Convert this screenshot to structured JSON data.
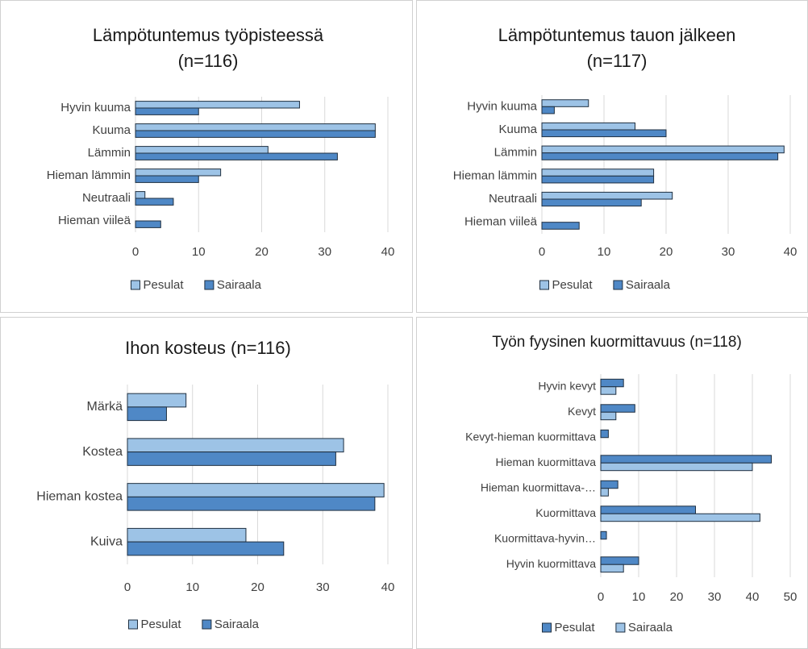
{
  "chart_data": [
    {
      "type": "bar",
      "orientation": "horizontal",
      "title": "Lämpötuntemus työpisteessä (n=116)",
      "categories": [
        "Hyvin kuuma",
        "Kuuma",
        "Lämmin",
        "Hieman lämmin",
        "Neutraali",
        "Hieman viileä"
      ],
      "series": [
        {
          "name": "Pesulat",
          "color": "#9dc3e6",
          "values": [
            26,
            38,
            21,
            13.5,
            1.5,
            0
          ]
        },
        {
          "name": "Sairaala",
          "color": "#4f88c6",
          "values": [
            10,
            38,
            32,
            10,
            6,
            4
          ]
        }
      ],
      "xlim": [
        0,
        40
      ],
      "xticks": [
        0,
        10,
        20,
        30,
        40
      ],
      "grid": true,
      "legend": "bottom"
    },
    {
      "type": "bar",
      "orientation": "horizontal",
      "title": "Lämpötuntemus tauon jälkeen (n=117)",
      "categories": [
        "Hyvin kuuma",
        "Kuuma",
        "Lämmin",
        "Hieman lämmin",
        "Neutraali",
        "Hieman viileä"
      ],
      "series": [
        {
          "name": "Pesulat",
          "color": "#9dc3e6",
          "values": [
            7.5,
            15,
            39,
            18,
            21,
            0
          ]
        },
        {
          "name": "Sairaala",
          "color": "#4f88c6",
          "values": [
            2,
            20,
            38,
            18,
            16,
            6
          ]
        }
      ],
      "xlim": [
        0,
        40
      ],
      "xticks": [
        0,
        10,
        20,
        30,
        40
      ],
      "grid": true,
      "legend": "bottom"
    },
    {
      "type": "bar",
      "orientation": "horizontal",
      "title": "Ihon kosteus (n=116)",
      "categories": [
        "Märkä",
        "Kostea",
        "Hieman kostea",
        "Kuiva"
      ],
      "series": [
        {
          "name": "Pesulat",
          "color": "#9dc3e6",
          "values": [
            9,
            33.2,
            39.4,
            18.2
          ]
        },
        {
          "name": "Sairaala",
          "color": "#4f88c6",
          "values": [
            6,
            32,
            38,
            24
          ]
        }
      ],
      "xlim": [
        0,
        40
      ],
      "xticks": [
        0,
        10,
        20,
        30,
        40
      ],
      "grid": true,
      "legend": "bottom"
    },
    {
      "type": "bar",
      "orientation": "horizontal",
      "title": "Työn fyysinen kuormittavuus (n=118)",
      "categories": [
        "Hyvin kevyt",
        "Kevyt",
        "Kevyt-hieman kuormittava",
        "Hieman kuormittava",
        "Hieman kuormittava-…",
        "Kuormittava",
        "Kuormittava-hyvin…",
        "Hyvin kuormittava"
      ],
      "series": [
        {
          "name": "Pesulat",
          "color": "#4f88c6",
          "values": [
            6,
            9,
            2,
            45,
            4.5,
            25,
            1.5,
            10
          ]
        },
        {
          "name": "Sairaala",
          "color": "#9dc3e6",
          "values": [
            4,
            4,
            0,
            40,
            2,
            42,
            0,
            6
          ]
        }
      ],
      "xlim": [
        0,
        50
      ],
      "xticks": [
        0,
        10,
        20,
        30,
        40,
        50
      ],
      "grid": true,
      "legend": "bottom"
    }
  ]
}
